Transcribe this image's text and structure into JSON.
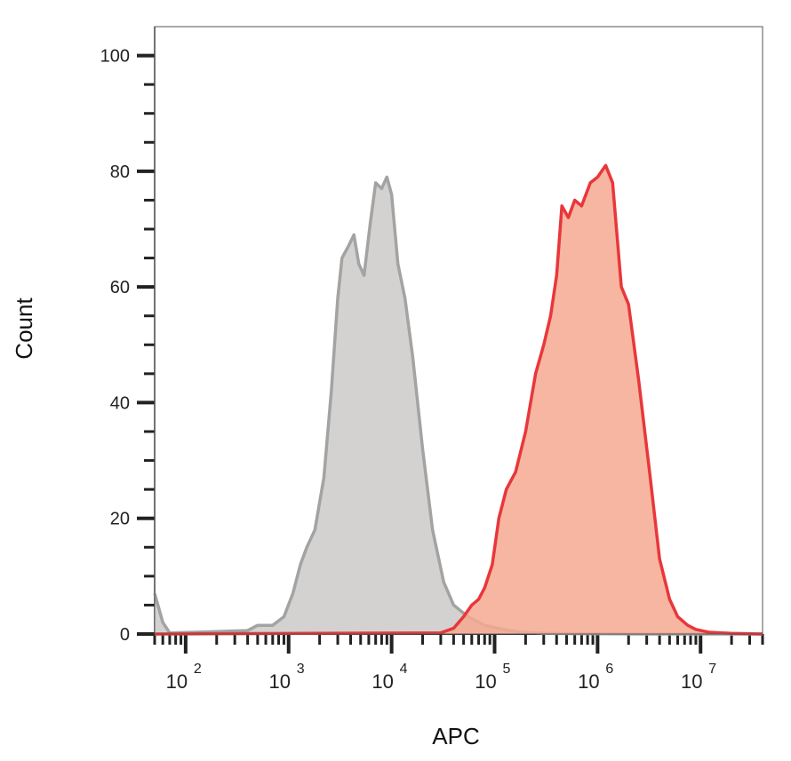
{
  "chart_data": {
    "type": "area",
    "title": "",
    "xlabel": "APC",
    "ylabel": "Count",
    "x_scale": "log10",
    "xlim": [
      50,
      40000000
    ],
    "ylim": [
      0,
      105
    ],
    "grid": false,
    "legend": "none",
    "y_ticks": [
      {
        "value": 0,
        "label": "0"
      },
      {
        "value": 20,
        "label": "20"
      },
      {
        "value": 40,
        "label": "40"
      },
      {
        "value": 60,
        "label": "60"
      },
      {
        "value": 80,
        "label": "80"
      },
      {
        "value": 100,
        "label": "100"
      }
    ],
    "x_ticks": [
      {
        "value": 100,
        "base": "10",
        "exp": "2"
      },
      {
        "value": 1000,
        "base": "10",
        "exp": "3"
      },
      {
        "value": 10000,
        "base": "10",
        "exp": "4"
      },
      {
        "value": 100000,
        "base": "10",
        "exp": "5"
      },
      {
        "value": 1000000,
        "base": "10",
        "exp": "6"
      },
      {
        "value": 10000000,
        "base": "10",
        "exp": "7"
      }
    ],
    "series": [
      {
        "fill": "#d3d2d1",
        "stroke": "#a3a3a3",
        "points": [
          [
            50,
            7
          ],
          [
            60,
            2
          ],
          [
            70,
            0.2
          ],
          [
            120,
            0.3
          ],
          [
            400,
            0.6
          ],
          [
            500,
            1.5
          ],
          [
            700,
            1.5
          ],
          [
            900,
            3
          ],
          [
            1100,
            7
          ],
          [
            1300,
            12
          ],
          [
            1500,
            15
          ],
          [
            1800,
            18
          ],
          [
            2200,
            27
          ],
          [
            2600,
            42
          ],
          [
            3000,
            58
          ],
          [
            3300,
            65
          ],
          [
            3800,
            67
          ],
          [
            4300,
            69
          ],
          [
            4800,
            64
          ],
          [
            5400,
            62
          ],
          [
            6200,
            71
          ],
          [
            7000,
            78
          ],
          [
            8000,
            77
          ],
          [
            9000,
            79
          ],
          [
            10000,
            76
          ],
          [
            11500,
            64
          ],
          [
            13500,
            58
          ],
          [
            16000,
            48
          ],
          [
            20000,
            32
          ],
          [
            25000,
            18
          ],
          [
            32000,
            9
          ],
          [
            40000,
            5
          ],
          [
            55000,
            3
          ],
          [
            80000,
            1.5
          ],
          [
            120000,
            0.8
          ],
          [
            180000,
            0.3
          ],
          [
            300000,
            0.1
          ],
          [
            3000000,
            0
          ],
          [
            40000000,
            0
          ]
        ]
      },
      {
        "fill": "#f6a990",
        "stroke": "#e8373b",
        "points": [
          [
            50,
            0
          ],
          [
            30000,
            0.2
          ],
          [
            40000,
            1
          ],
          [
            50000,
            3
          ],
          [
            60000,
            5
          ],
          [
            70000,
            6
          ],
          [
            80000,
            8
          ],
          [
            95000,
            12
          ],
          [
            110000,
            20
          ],
          [
            130000,
            25
          ],
          [
            160000,
            28
          ],
          [
            200000,
            35
          ],
          [
            250000,
            45
          ],
          [
            300000,
            50
          ],
          [
            350000,
            55
          ],
          [
            400000,
            62
          ],
          [
            450000,
            74
          ],
          [
            520000,
            72
          ],
          [
            600000,
            75
          ],
          [
            700000,
            74
          ],
          [
            850000,
            78
          ],
          [
            1000000,
            79
          ],
          [
            1200000,
            81
          ],
          [
            1400000,
            78
          ],
          [
            1700000,
            60
          ],
          [
            2000000,
            57
          ],
          [
            2500000,
            44
          ],
          [
            3200000,
            28
          ],
          [
            4000000,
            13
          ],
          [
            5000000,
            6
          ],
          [
            6000000,
            3
          ],
          [
            7500000,
            1.5
          ],
          [
            9000000,
            0.8
          ],
          [
            12000000,
            0.3
          ],
          [
            20000000,
            0.1
          ],
          [
            40000000,
            0
          ]
        ]
      }
    ]
  }
}
